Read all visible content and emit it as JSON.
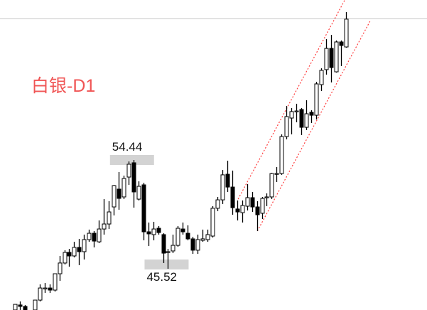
{
  "chart_data": {
    "type": "candlestick",
    "title": "白银-D1",
    "title_color": "#f05555",
    "up_color": "#ffffff",
    "down_color": "#000000",
    "ohlc": [
      [
        42.14,
        42.6,
        42.1,
        42.6
      ],
      [
        42.55,
        42.84,
        42.14,
        42.43
      ],
      [
        42.43,
        42.55,
        42.1,
        42.14
      ],
      null,
      [
        42.14,
        42.95,
        42.1,
        42.95
      ],
      [
        42.95,
        44.24,
        42.84,
        43.94
      ],
      [
        43.94,
        44.35,
        43.54,
        43.94
      ],
      [
        43.94,
        44.24,
        43.54,
        43.77
      ],
      [
        43.77,
        45.11,
        43.65,
        45.11
      ],
      [
        45.11,
        46.57,
        44.53,
        45.99
      ],
      [
        45.99,
        47.04,
        45.87,
        46.86
      ],
      [
        46.86,
        47.15,
        45.69,
        46.57
      ],
      [
        46.57,
        47.73,
        46.45,
        47.27
      ],
      [
        47.27,
        47.97,
        45.81,
        46.92
      ],
      [
        46.92,
        48.32,
        46.28,
        47.91
      ],
      [
        47.91,
        48.73,
        47.73,
        48.43
      ],
      [
        48.43,
        48.61,
        47.27,
        47.79
      ],
      [
        47.73,
        49.48,
        47.62,
        48.78
      ],
      [
        48.78,
        51.23,
        48.32,
        49.19
      ],
      [
        49.19,
        51.06,
        48.78,
        50.18
      ],
      [
        50.59,
        52.4,
        49.89,
        52.34
      ],
      [
        52.05,
        53.45,
        50.36,
        51.29
      ],
      [
        51.41,
        53.16,
        51.23,
        52.92
      ],
      [
        53.04,
        54.32,
        52.4,
        54.09
      ],
      [
        54.21,
        54.44,
        50.53,
        51.82
      ],
      [
        51.23,
        52.69,
        51.12,
        52.28
      ],
      [
        52.4,
        52.57,
        47.85,
        48.55
      ],
      [
        48.55,
        49.31,
        47.38,
        48.38
      ],
      [
        48.32,
        49.37,
        47.85,
        48.78
      ],
      [
        48.84,
        49.02,
        48.32,
        48.49
      ],
      [
        48.32,
        48.43,
        45.99,
        46.8
      ],
      [
        46.92,
        47.15,
        45.52,
        46.92
      ],
      [
        46.98,
        48.32,
        46.8,
        47.44
      ],
      [
        47.44,
        49.02,
        47.32,
        48.84
      ],
      [
        48.78,
        49.31,
        48.32,
        48.55
      ],
      [
        48.43,
        49.08,
        47.85,
        47.97
      ],
      [
        47.97,
        48.14,
        46.74,
        47.04
      ],
      [
        47.04,
        48.32,
        46.74,
        47.91
      ],
      [
        47.85,
        48.73,
        47.73,
        47.97
      ],
      [
        47.91,
        48.73,
        47.73,
        48.32
      ],
      [
        48.2,
        50.65,
        48.08,
        50.48
      ],
      [
        50.48,
        51.41,
        50.24,
        51.17
      ],
      [
        51.17,
        53.62,
        50.83,
        53.22
      ],
      [
        53.27,
        54.38,
        51.82,
        52.22
      ],
      [
        52.22,
        53.57,
        49.95,
        50.53
      ],
      [
        50.42,
        51.12,
        49.48,
        50.18
      ],
      [
        50.12,
        51.12,
        49.31,
        50.71
      ],
      [
        50.65,
        52.46,
        50.3,
        51.35
      ],
      [
        51.35,
        51.82,
        50.18,
        50.59
      ],
      [
        50.59,
        51.06,
        48.61,
        49.95
      ],
      [
        50.07,
        51.41,
        49.6,
        51.29
      ],
      [
        51.35,
        51.7,
        50.65,
        51.41
      ],
      [
        51.41,
        53.39,
        51.23,
        53.33
      ],
      [
        53.33,
        53.86,
        52.63,
        53.33
      ],
      [
        53.33,
        56.54,
        53.22,
        56.36
      ],
      [
        56.36,
        58.87,
        56.13,
        58.0
      ],
      [
        57.88,
        58.7,
        56.54,
        58.41
      ],
      [
        58.46,
        59.05,
        57.53,
        58.46
      ],
      [
        58.58,
        58.7,
        56.48,
        57.12
      ],
      [
        57.12,
        59.34,
        56.89,
        58.23
      ],
      [
        58.35,
        58.52,
        57.47,
        58.11
      ],
      [
        58.11,
        60.85,
        57.76,
        60.68
      ],
      [
        60.62,
        61.96,
        60.1,
        61.79
      ],
      [
        61.85,
        64.35,
        61.44,
        63.59
      ],
      [
        63.59,
        64.7,
        60.8,
        62.02
      ],
      [
        61.67,
        64.24,
        61.61,
        64.12
      ],
      [
        64.12,
        64.24,
        62.14,
        63.83
      ],
      [
        63.71,
        66.57,
        63.65,
        65.99
      ]
    ],
    "horizontal_line": {
      "price": 66.04,
      "color": "#c8c8c8"
    },
    "channel": {
      "color": "#ff3b3b",
      "style": "dotted",
      "upper": [
        [
          45.2,
          51.23
        ],
        [
          66.8,
          67.56
        ]
      ],
      "lower": [
        [
          49.1,
          48.61
        ],
        [
          71.9,
          65.81
        ]
      ]
    },
    "annotations": [
      {
        "text": "54.44",
        "price": 54.44,
        "candle": 24,
        "position": "above"
      },
      {
        "text": "45.52",
        "price": 45.52,
        "candle": 31,
        "position": "below"
      }
    ]
  }
}
